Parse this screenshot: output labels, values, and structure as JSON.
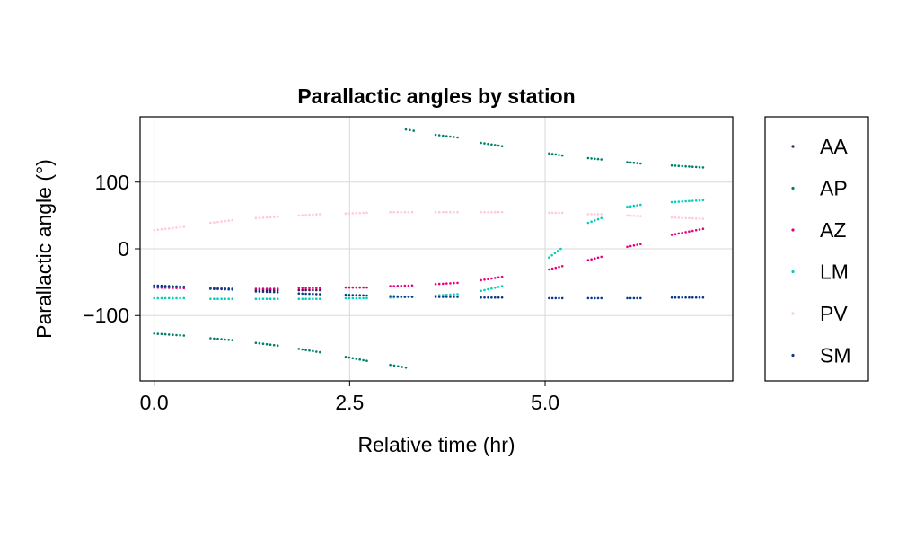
{
  "chart_data": {
    "type": "scatter",
    "title": "Parallactic angles by station",
    "xlabel": "Relative time (hr)",
    "ylabel": "Parallactic angle (°)",
    "xlim": [
      -0.18,
      7.4
    ],
    "ylim": [
      -198,
      198
    ],
    "xticks": [
      0.0,
      2.5,
      5.0
    ],
    "xtick_labels": [
      "0.0",
      "2.5",
      "5.0"
    ],
    "yticks": [
      -100,
      0,
      100
    ],
    "ytick_labels": [
      "−100",
      "0",
      "100"
    ],
    "grid": true,
    "legend_position": "right",
    "series": [
      {
        "name": "AA",
        "color": "#3a1a4d",
        "segments": [
          [
            [
              0.0,
              -55
            ],
            [
              0.38,
              -57
            ]
          ],
          [
            [
              0.72,
              -59
            ],
            [
              1.0,
              -60
            ]
          ],
          [
            [
              1.3,
              -62
            ],
            [
              1.58,
              -62
            ]
          ],
          [
            [
              1.85,
              -62
            ],
            [
              2.12,
              -62
            ]
          ]
        ]
      },
      {
        "name": "AP",
        "color": "#00806a",
        "segments": [
          [
            [
              0.0,
              -127
            ],
            [
              0.38,
              -130
            ]
          ],
          [
            [
              0.72,
              -134
            ],
            [
              1.0,
              -137
            ]
          ],
          [
            [
              1.3,
              -141
            ],
            [
              1.58,
              -145
            ]
          ],
          [
            [
              1.85,
              -150
            ],
            [
              2.12,
              -155
            ]
          ],
          [
            [
              2.45,
              -162
            ],
            [
              2.72,
              -168
            ]
          ],
          [
            [
              3.02,
              -174
            ],
            [
              3.22,
              -178
            ]
          ],
          [
            [
              3.22,
              179
            ],
            [
              3.32,
              177
            ]
          ],
          [
            [
              3.6,
              171
            ],
            [
              3.88,
              167
            ]
          ],
          [
            [
              4.18,
              159
            ],
            [
              4.45,
              154
            ]
          ],
          [
            [
              5.05,
              143
            ],
            [
              5.22,
              140
            ]
          ],
          [
            [
              5.55,
              136
            ],
            [
              5.72,
              134
            ]
          ],
          [
            [
              6.05,
              130
            ],
            [
              6.22,
              128
            ]
          ],
          [
            [
              6.62,
              125
            ],
            [
              7.02,
              122
            ]
          ]
        ]
      },
      {
        "name": "AZ",
        "color": "#e6007e",
        "segments": [
          [
            [
              0.0,
              -58
            ],
            [
              0.38,
              -59
            ]
          ],
          [
            [
              0.72,
              -59
            ],
            [
              1.0,
              -60
            ]
          ],
          [
            [
              1.3,
              -60
            ],
            [
              1.58,
              -60
            ]
          ],
          [
            [
              1.85,
              -59
            ],
            [
              2.12,
              -59
            ]
          ],
          [
            [
              2.45,
              -58
            ],
            [
              2.72,
              -58
            ]
          ],
          [
            [
              3.02,
              -56
            ],
            [
              3.3,
              -55
            ]
          ],
          [
            [
              3.6,
              -53
            ],
            [
              3.88,
              -51
            ]
          ],
          [
            [
              4.18,
              -47
            ],
            [
              4.45,
              -42
            ]
          ],
          [
            [
              5.05,
              -31
            ],
            [
              5.22,
              -26
            ]
          ],
          [
            [
              5.55,
              -17
            ],
            [
              5.72,
              -12
            ]
          ],
          [
            [
              6.05,
              3
            ],
            [
              6.22,
              7
            ]
          ],
          [
            [
              6.62,
              21
            ],
            [
              7.02,
              30
            ]
          ]
        ]
      },
      {
        "name": "LM",
        "color": "#00d0b8",
        "segments": [
          [
            [
              0.0,
              -74
            ],
            [
              0.38,
              -74
            ]
          ],
          [
            [
              0.72,
              -75
            ],
            [
              1.0,
              -75
            ]
          ],
          [
            [
              1.3,
              -75
            ],
            [
              1.58,
              -75
            ]
          ],
          [
            [
              1.85,
              -75
            ],
            [
              2.12,
              -75
            ]
          ],
          [
            [
              2.45,
              -74
            ],
            [
              2.72,
              -74
            ]
          ],
          [
            [
              3.02,
              -73
            ],
            [
              3.3,
              -72
            ]
          ],
          [
            [
              3.6,
              -70
            ],
            [
              3.88,
              -68
            ]
          ],
          [
            [
              4.18,
              -63
            ],
            [
              4.45,
              -56
            ]
          ],
          [
            [
              5.05,
              -13
            ],
            [
              5.2,
              0
            ]
          ],
          [
            [
              5.55,
              39
            ],
            [
              5.72,
              46
            ]
          ],
          [
            [
              6.05,
              63
            ],
            [
              6.22,
              66
            ]
          ],
          [
            [
              6.62,
              70
            ],
            [
              7.02,
              73
            ]
          ]
        ]
      },
      {
        "name": "PV",
        "color": "#ffc8dc",
        "segments": [
          [
            [
              0.0,
              28
            ],
            [
              0.38,
              33
            ]
          ],
          [
            [
              0.72,
              39
            ],
            [
              1.0,
              43
            ]
          ],
          [
            [
              1.3,
              46
            ],
            [
              1.58,
              48
            ]
          ],
          [
            [
              1.85,
              50
            ],
            [
              2.12,
              52
            ]
          ],
          [
            [
              2.45,
              53
            ],
            [
              2.72,
              54
            ]
          ],
          [
            [
              3.02,
              55
            ],
            [
              3.3,
              55
            ]
          ],
          [
            [
              3.6,
              55
            ],
            [
              3.88,
              55
            ]
          ],
          [
            [
              4.18,
              55
            ],
            [
              4.45,
              55
            ]
          ],
          [
            [
              5.05,
              54
            ],
            [
              5.22,
              54
            ]
          ],
          [
            [
              5.55,
              52
            ],
            [
              5.72,
              52
            ]
          ],
          [
            [
              6.05,
              50
            ],
            [
              6.22,
              49
            ]
          ],
          [
            [
              6.62,
              47
            ],
            [
              7.02,
              45
            ]
          ]
        ]
      },
      {
        "name": "SM",
        "color": "#0a3a86",
        "segments": [
          [
            [
              0.0,
              -56
            ],
            [
              0.38,
              -57
            ]
          ],
          [
            [
              0.72,
              -60
            ],
            [
              1.0,
              -61
            ]
          ],
          [
            [
              1.3,
              -64
            ],
            [
              1.58,
              -65
            ]
          ],
          [
            [
              1.85,
              -67
            ],
            [
              2.12,
              -68
            ]
          ],
          [
            [
              2.45,
              -69
            ],
            [
              2.72,
              -70
            ]
          ],
          [
            [
              3.02,
              -71
            ],
            [
              3.3,
              -72
            ]
          ],
          [
            [
              3.6,
              -72
            ],
            [
              3.88,
              -72
            ]
          ],
          [
            [
              4.18,
              -73
            ],
            [
              4.45,
              -73
            ]
          ],
          [
            [
              5.05,
              -74
            ],
            [
              5.22,
              -74
            ]
          ],
          [
            [
              5.55,
              -74
            ],
            [
              5.72,
              -74
            ]
          ],
          [
            [
              6.05,
              -74
            ],
            [
              6.22,
              -74
            ]
          ],
          [
            [
              6.62,
              -73
            ],
            [
              7.02,
              -73
            ]
          ]
        ]
      }
    ]
  }
}
